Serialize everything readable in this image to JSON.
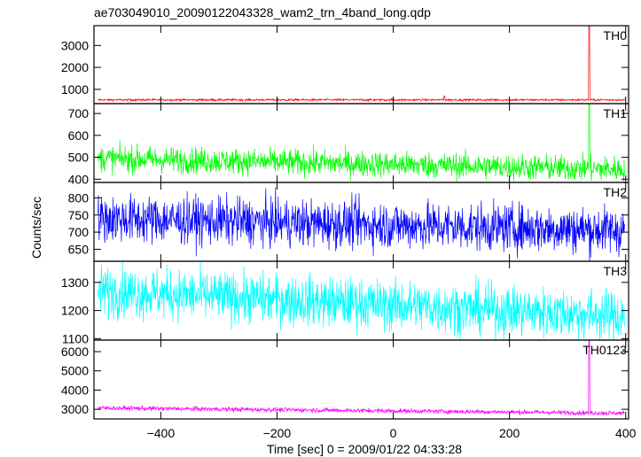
{
  "chart_data": {
    "type": "line",
    "title": "ae703049010_20090122043328_wam2_trn_4band_long.qdp",
    "xlabel": "Time [sec] 0 = 2009/01/22 04:33:28",
    "ylabel": "Counts/sec",
    "xlim": [
      -515,
      405
    ],
    "x_ticks": [
      -400,
      -200,
      0,
      200,
      400
    ],
    "x_tick_labels": [
      "−400",
      "−200",
      "0",
      "200",
      "400"
    ],
    "grid": false,
    "panels": [
      {
        "label": "TH0",
        "color": "#ff0000",
        "ylim": [
          350,
          3900
        ],
        "y_ticks": [
          1000,
          2000,
          3000
        ],
        "baseline": 520,
        "noise": 25,
        "spikes": [
          {
            "x": 88,
            "y": 700
          },
          {
            "x": 337,
            "y": 3900
          }
        ]
      },
      {
        "label": "TH1",
        "color": "#00ff00",
        "ylim": [
          385,
          745
        ],
        "y_ticks": [
          400,
          500,
          600,
          700
        ],
        "baseline": 495,
        "trend_end": 445,
        "noise": 30,
        "spikes": [
          {
            "x": 337,
            "y": 745
          }
        ]
      },
      {
        "label": "TH2",
        "color": "#0000ff",
        "ylim": [
          615,
          845
        ],
        "y_ticks": [
          650,
          700,
          750,
          800
        ],
        "baseline": 740,
        "trend_end": 705,
        "noise": 35,
        "spikes": []
      },
      {
        "label": "TH3",
        "color": "#00ffff",
        "ylim": [
          1095,
          1375
        ],
        "y_ticks": [
          1100,
          1200,
          1300
        ],
        "baseline": 1270,
        "trend_end": 1180,
        "noise": 45,
        "spikes": []
      },
      {
        "label": "TH0123",
        "color": "#ff00ff",
        "ylim": [
          2500,
          6600
        ],
        "y_ticks": [
          3000,
          4000,
          5000,
          6000
        ],
        "baseline": 3070,
        "trend_end": 2800,
        "noise": 60,
        "spikes": [
          {
            "x": 337,
            "y": 6600
          }
        ]
      }
    ]
  }
}
